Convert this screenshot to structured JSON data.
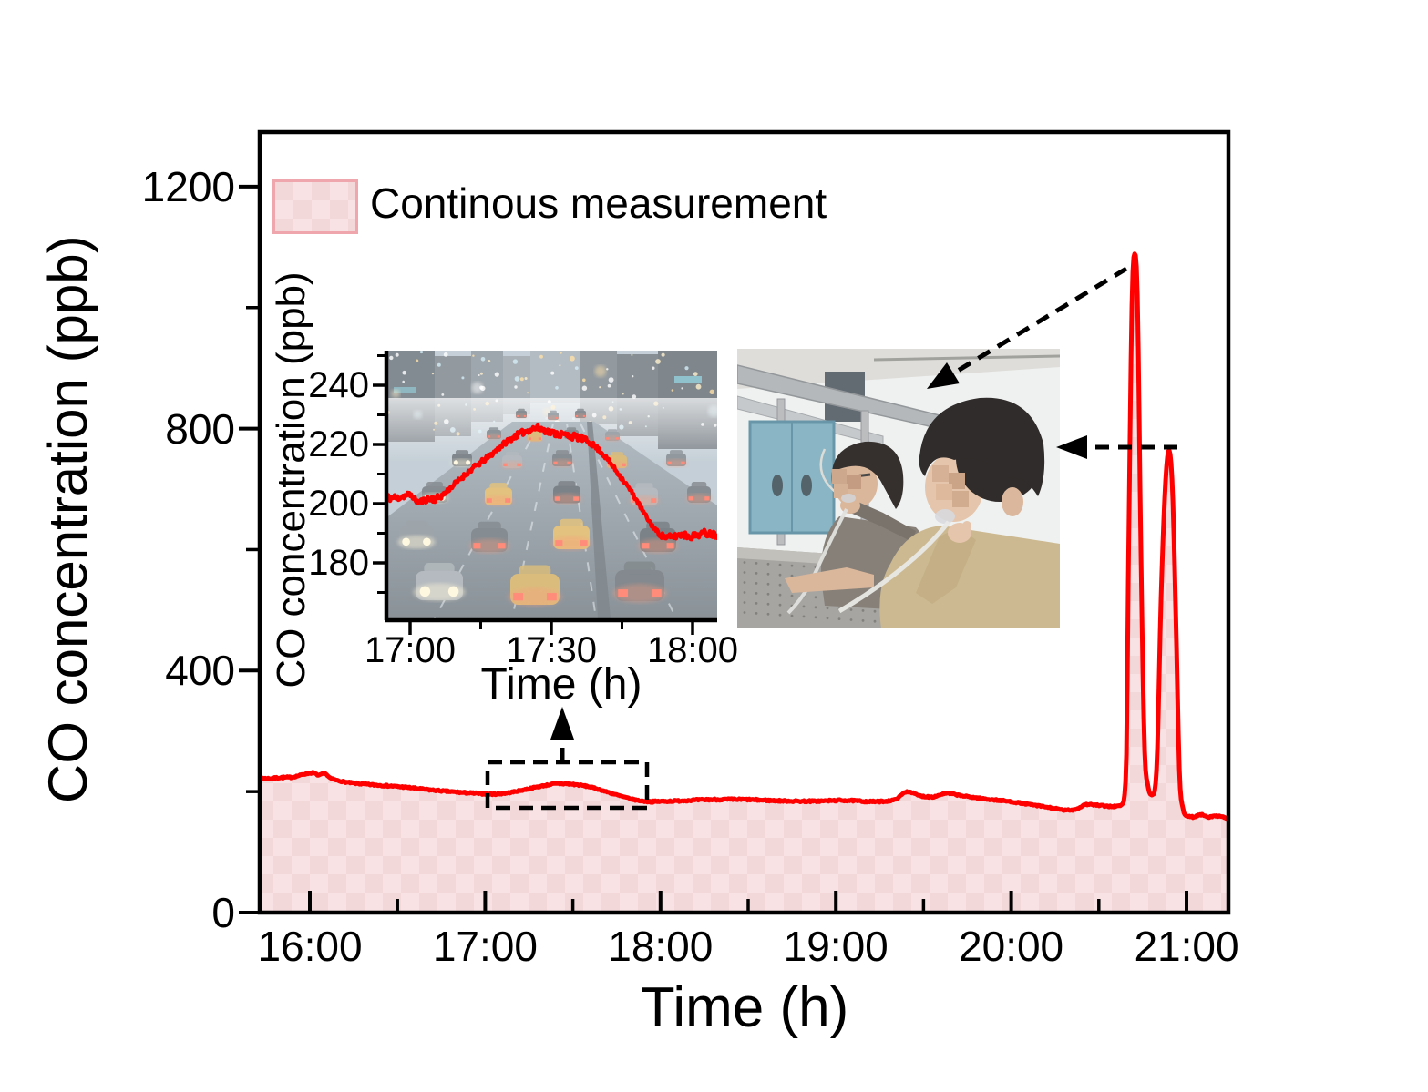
{
  "legend": {
    "label": "Continous measurement",
    "swatch_border": "#f0a6ad",
    "swatch_fill_light": "#f8e2e3",
    "swatch_fill_dark": "#f3d8da"
  },
  "photos": {
    "inset_background": "night-time city road congested with car traffic, wet pavement, red taillights and yellow taxis",
    "breath_photo": "two researchers at an optical table exhaling through clear sampling tubes, blue lab door behind, faces pixelated"
  },
  "chart_data": [
    {
      "id": "main",
      "type": "area",
      "title": "",
      "xlabel": "Time (h)",
      "ylabel": "CO concentration (ppb)",
      "x_unit": "decimal_hours",
      "xlim": [
        15.7,
        21.25
      ],
      "ylim": [
        0,
        1293
      ],
      "grid": false,
      "legend_position": "top-left-inside",
      "xticks": [
        {
          "value": 16,
          "label": "16:00"
        },
        {
          "value": 17,
          "label": "17:00"
        },
        {
          "value": 18,
          "label": "18:00"
        },
        {
          "value": 19,
          "label": "19:00"
        },
        {
          "value": 20,
          "label": "20:00"
        },
        {
          "value": 21,
          "label": "21:00"
        }
      ],
      "xticks_minor": [
        16.5,
        17.5,
        18.5,
        19.5,
        20.5
      ],
      "yticks": [
        {
          "value": 0,
          "label": "0"
        },
        {
          "value": 400,
          "label": "400"
        },
        {
          "value": 800,
          "label": "800"
        },
        {
          "value": 1200,
          "label": "1200"
        }
      ],
      "yticks_minor": [
        200,
        600,
        1000
      ],
      "series": [
        {
          "name": "Continous measurement",
          "line_color": "#ff0000",
          "fill_style": "pink-checkerboard",
          "points": [
            [
              15.7,
              224
            ],
            [
              15.76,
              221.5
            ],
            [
              15.82,
              223
            ],
            [
              15.9,
              224
            ],
            [
              15.97,
              229
            ],
            [
              16.02,
              231
            ],
            [
              16.05,
              227
            ],
            [
              16.08,
              230
            ],
            [
              16.12,
              222
            ],
            [
              16.2,
              216
            ],
            [
              16.3,
              212.5
            ],
            [
              16.42,
              210
            ],
            [
              16.55,
              207
            ],
            [
              16.68,
              203
            ],
            [
              16.82,
              199.5
            ],
            [
              16.95,
              197
            ],
            [
              17.05,
              196
            ],
            [
              17.12,
              197.5
            ],
            [
              17.22,
              203
            ],
            [
              17.32,
              209
            ],
            [
              17.42,
              213
            ],
            [
              17.5,
              212
            ],
            [
              17.6,
              207.5
            ],
            [
              17.7,
              199
            ],
            [
              17.78,
              192
            ],
            [
              17.86,
              186
            ],
            [
              17.95,
              183.5
            ],
            [
              18.08,
              184.5
            ],
            [
              18.25,
              186.5
            ],
            [
              18.45,
              187
            ],
            [
              18.65,
              185
            ],
            [
              18.85,
              184
            ],
            [
              19.05,
              185.5
            ],
            [
              19.2,
              183.5
            ],
            [
              19.33,
              186
            ],
            [
              19.41,
              200
            ],
            [
              19.48,
              193
            ],
            [
              19.55,
              191.5
            ],
            [
              19.63,
              197
            ],
            [
              19.72,
              193
            ],
            [
              19.85,
              188
            ],
            [
              19.98,
              184
            ],
            [
              20.12,
              178
            ],
            [
              20.24,
              172.5
            ],
            [
              20.32,
              169
            ],
            [
              20.38,
              172
            ],
            [
              20.43,
              179
            ],
            [
              20.5,
              177
            ],
            [
              20.58,
              175.5
            ],
            [
              20.63,
              178
            ],
            [
              20.655,
              230
            ],
            [
              20.67,
              600
            ],
            [
              20.69,
              1020
            ],
            [
              20.705,
              1089
            ],
            [
              20.72,
              1020
            ],
            [
              20.74,
              600
            ],
            [
              20.76,
              280
            ],
            [
              20.78,
              210
            ],
            [
              20.805,
              194
            ],
            [
              20.83,
              240
            ],
            [
              20.855,
              520
            ],
            [
              20.88,
              710
            ],
            [
              20.9,
              764
            ],
            [
              20.92,
              700
            ],
            [
              20.94,
              480
            ],
            [
              20.96,
              230
            ],
            [
              20.98,
              172
            ],
            [
              21.0,
              160
            ],
            [
              21.04,
              158
            ],
            [
              21.08,
              162
            ],
            [
              21.13,
              158
            ],
            [
              21.18,
              160
            ],
            [
              21.25,
              153
            ]
          ]
        }
      ],
      "annotations": {
        "dashed_zoom_box_time_range": [
          "17:00",
          "17:55"
        ],
        "peak_1": {
          "time": "20:42",
          "value_ppb": 1089
        },
        "peak_2": {
          "time": "20:54",
          "value_ppb": 764
        }
      }
    },
    {
      "id": "inset",
      "type": "line",
      "title": "",
      "xlabel": "Time (h)",
      "ylabel": "CO concentration (ppb)",
      "x_unit": "decimal_hours",
      "xlim": [
        16.91,
        18.09
      ],
      "ylim": [
        161,
        252
      ],
      "grid": false,
      "background": "traffic-photo",
      "xticks": [
        {
          "value": 17.0,
          "label": "17:00"
        },
        {
          "value": 17.5,
          "label": "17:30"
        },
        {
          "value": 18.0,
          "label": "18:00"
        }
      ],
      "xticks_minor": [
        17.25,
        17.75
      ],
      "yticks": [
        {
          "value": 180,
          "label": "180"
        },
        {
          "value": 200,
          "label": "200"
        },
        {
          "value": 220,
          "label": "220"
        },
        {
          "value": 240,
          "label": "240"
        }
      ],
      "yticks_minor": [
        170,
        190,
        210,
        230,
        250
      ],
      "series": [
        {
          "name": "CO concentration",
          "line_color": "#ff0000",
          "points": [
            [
              16.91,
              202
            ],
            [
              16.95,
              202
            ],
            [
              17.0,
              203
            ],
            [
              17.03,
              200.5
            ],
            [
              17.06,
              201.5
            ],
            [
              17.1,
              202
            ],
            [
              17.15,
              206
            ],
            [
              17.21,
              211
            ],
            [
              17.28,
              216
            ],
            [
              17.35,
              221.5
            ],
            [
              17.41,
              224.5
            ],
            [
              17.45,
              225.5
            ],
            [
              17.5,
              224
            ],
            [
              17.56,
              223
            ],
            [
              17.62,
              221.5
            ],
            [
              17.67,
              218
            ],
            [
              17.73,
              211
            ],
            [
              17.79,
              203
            ],
            [
              17.84,
              195
            ],
            [
              17.88,
              190
            ],
            [
              17.92,
              188.5
            ],
            [
              17.96,
              189.5
            ],
            [
              18.0,
              189
            ],
            [
              18.04,
              190
            ],
            [
              18.09,
              189.5
            ]
          ]
        }
      ]
    }
  ]
}
